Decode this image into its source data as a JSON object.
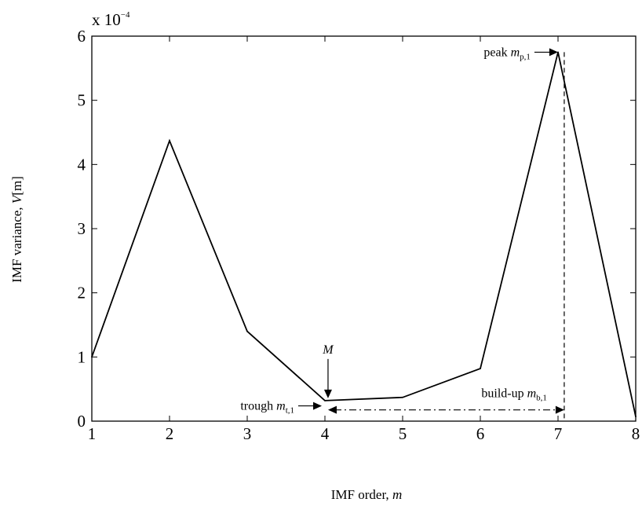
{
  "chart_data": {
    "type": "line",
    "x": [
      1,
      2,
      3,
      4,
      5,
      6,
      7,
      8
    ],
    "series": [
      {
        "values": [
          1.0,
          4.37,
          1.4,
          0.32,
          0.37,
          0.82,
          5.75,
          0.07
        ],
        "color": "#000000"
      }
    ],
    "xlim": [
      1,
      8
    ],
    "ylim": [
      0,
      6
    ],
    "y_scale_label": {
      "base": "x 10",
      "exp": "−4"
    },
    "xticks": [
      "1",
      "2",
      "3",
      "4",
      "5",
      "6",
      "7",
      "8"
    ],
    "yticks": [
      "0",
      "1",
      "2",
      "3",
      "4",
      "5",
      "6"
    ],
    "xlabel": {
      "text": "IMF order, ",
      "var": "m"
    },
    "ylabel": {
      "text": "IMF variance, ",
      "var": "V",
      "rest": "[m]"
    },
    "grid": false,
    "annotations": {
      "M": {
        "text": "M",
        "x": 4.04,
        "y": 0.32
      },
      "trough": {
        "text": "trough ",
        "var": "m",
        "sub": "t,1",
        "x": 4.0,
        "y": 0.25
      },
      "peak": {
        "text": "peak ",
        "var": "m",
        "sub": "p,1",
        "x": 7.08,
        "y": 5.75
      },
      "buildup": {
        "text": "build-up ",
        "var": "m",
        "sub": "b,1",
        "x_start": 4.04,
        "x_end": 7.08,
        "y": 0.2
      }
    }
  }
}
